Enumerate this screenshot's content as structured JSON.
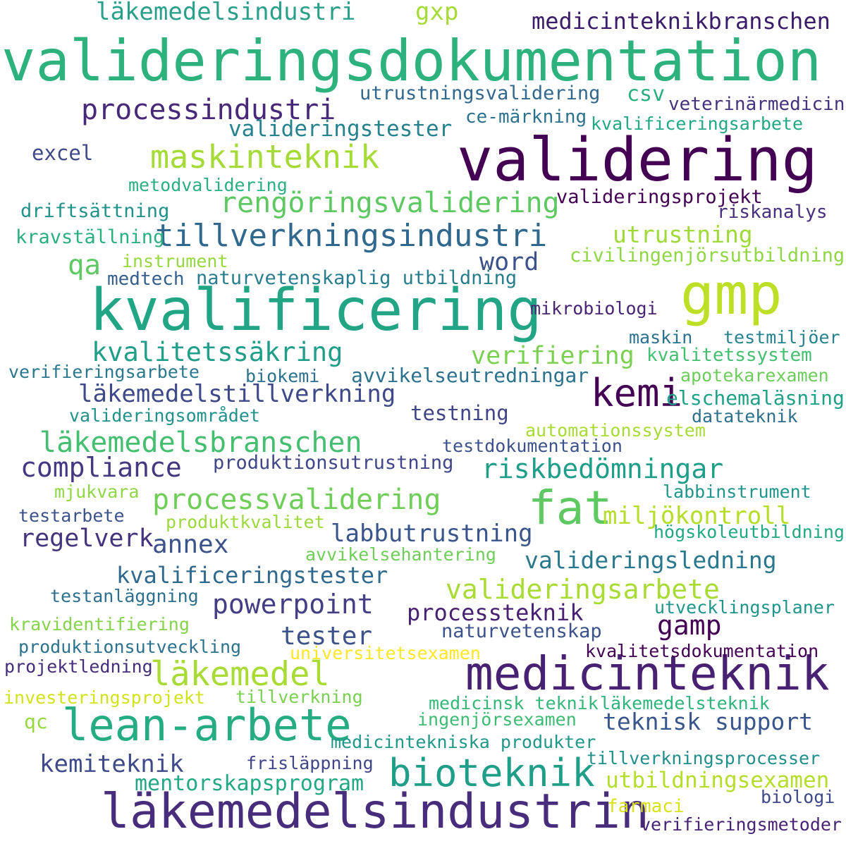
{
  "words": [
    {
      "text": "valideringsdokumentation",
      "color": "#2db27d"
    },
    {
      "text": "validering",
      "color": "#440154"
    },
    {
      "text": "kvalificering",
      "color": "#21a585"
    },
    {
      "text": "gmp",
      "color": "#bddf26"
    },
    {
      "text": "läkemedelsindustrin",
      "color": "#472d7b"
    },
    {
      "text": "medicinteknik",
      "color": "#482173"
    },
    {
      "text": "fat",
      "color": "#5ec962"
    },
    {
      "text": "lean-arbete",
      "color": "#25ac82"
    },
    {
      "text": "bioteknik",
      "color": "#1f9e89"
    },
    {
      "text": "kemi",
      "color": "#440154"
    },
    {
      "text": "maskinteknik",
      "color": "#a5db36"
    },
    {
      "text": "processindustri",
      "color": "#482878"
    },
    {
      "text": "läkemedel",
      "color": "#a8db34"
    },
    {
      "text": "läkemedelsindustri",
      "color": "#2a9f8a"
    },
    {
      "text": "gxp",
      "color": "#a5db36"
    },
    {
      "text": "medicinteknikbranschen",
      "color": "#3b1c6a"
    },
    {
      "text": "utrustningsvalidering",
      "color": "#31688e"
    },
    {
      "text": "csv",
      "color": "#2ab07f"
    },
    {
      "text": "veterinärmedicin",
      "color": "#46327e"
    },
    {
      "text": "valideringstester",
      "color": "#26828e"
    },
    {
      "text": "ce-märkning",
      "color": "#2c728e"
    },
    {
      "text": "kvalificeringsarbete",
      "color": "#22a884"
    },
    {
      "text": "excel",
      "color": "#3e4989"
    },
    {
      "text": "metodvalidering",
      "color": "#2ab07f"
    },
    {
      "text": "rengöringsvalidering",
      "color": "#5ec962"
    },
    {
      "text": "valideringsprojekt",
      "color": "#440154"
    },
    {
      "text": "driftsättning",
      "color": "#21918c"
    },
    {
      "text": "riskanalys",
      "color": "#472f7d"
    },
    {
      "text": "tillverkningsindustri",
      "color": "#31688e"
    },
    {
      "text": "utrustning",
      "color": "#a0da39"
    },
    {
      "text": "kravställning",
      "color": "#2ab07f"
    },
    {
      "text": "qa",
      "color": "#5ec962"
    },
    {
      "text": "instrument",
      "color": "#95d840"
    },
    {
      "text": "word",
      "color": "#3b528b"
    },
    {
      "text": "civilingenjörsutbildning",
      "color": "#8fd744"
    },
    {
      "text": "medtech",
      "color": "#355f8d"
    },
    {
      "text": "naturvetenskaplig utbildning",
      "color": "#287d8e"
    },
    {
      "text": "mikrobiologi",
      "color": "#482475"
    },
    {
      "text": "maskin",
      "color": "#2c728e"
    },
    {
      "text": "testmiljöer",
      "color": "#26828e"
    },
    {
      "text": "kvalitetssäkring",
      "color": "#1f9e89"
    },
    {
      "text": "verifiering",
      "color": "#7ad151"
    },
    {
      "text": "kvalitetssystem",
      "color": "#44bf70"
    },
    {
      "text": "verifieringsarbete",
      "color": "#2a788e"
    },
    {
      "text": "biokemi",
      "color": "#2c728e"
    },
    {
      "text": "avvikelseutredningar",
      "color": "#2c728e"
    },
    {
      "text": "apotekarexamen",
      "color": "#6ccd5a"
    },
    {
      "text": "läkemedelstillverkning",
      "color": "#3e4989"
    },
    {
      "text": "elschemaläsning",
      "color": "#1fa187"
    },
    {
      "text": "valideringsområdet",
      "color": "#21918c"
    },
    {
      "text": "testning",
      "color": "#414487"
    },
    {
      "text": "datateknik",
      "color": "#2d708e"
    },
    {
      "text": "automationssystem",
      "color": "#a8db34"
    },
    {
      "text": "läkemedelsbranschen",
      "color": "#44bf70"
    },
    {
      "text": "testdokumentation",
      "color": "#3b528b"
    },
    {
      "text": "compliance",
      "color": "#453781"
    },
    {
      "text": "produktionsutrustning",
      "color": "#404688"
    },
    {
      "text": "riskbedömningar",
      "color": "#1f9e89"
    },
    {
      "text": "mjukvara",
      "color": "#8fd744"
    },
    {
      "text": "labbinstrument",
      "color": "#1f958b"
    },
    {
      "text": "processvalidering",
      "color": "#6ece58"
    },
    {
      "text": "miljökontroll",
      "color": "#b5de2b"
    },
    {
      "text": "testarbete",
      "color": "#3b528b"
    },
    {
      "text": "produktkvalitet",
      "color": "#9bd93c"
    },
    {
      "text": "högskoleutbildning",
      "color": "#22a884"
    },
    {
      "text": "regelverk",
      "color": "#46337e"
    },
    {
      "text": "annex",
      "color": "#3b528b"
    },
    {
      "text": "labbutrustning",
      "color": "#39558c"
    },
    {
      "text": "avvikelsehantering",
      "color": "#6ece58"
    },
    {
      "text": "valideringsledning",
      "color": "#2a788e"
    },
    {
      "text": "kvalificeringstester",
      "color": "#30698e"
    },
    {
      "text": "valideringsarbete",
      "color": "#a8db34"
    },
    {
      "text": "testanläggning",
      "color": "#2d708e"
    },
    {
      "text": "powerpoint",
      "color": "#433e85"
    },
    {
      "text": "processteknik",
      "color": "#482173"
    },
    {
      "text": "utvecklingsplaner",
      "color": "#1f958b"
    },
    {
      "text": "kravidentifiering",
      "color": "#84d44b"
    },
    {
      "text": "gamp",
      "color": "#440154"
    },
    {
      "text": "tester",
      "color": "#3b528b"
    },
    {
      "text": "naturvetenskap",
      "color": "#3b528b"
    },
    {
      "text": "produktionsutveckling",
      "color": "#2c728e"
    },
    {
      "text": "universitetsexamen",
      "color": "#fde725"
    },
    {
      "text": "kvalitetsdokumentation",
      "color": "#440154"
    },
    {
      "text": "projektledning",
      "color": "#472d7b"
    },
    {
      "text": "investeringsprojekt",
      "color": "#d2e21b"
    },
    {
      "text": "tillverkning",
      "color": "#7ad151"
    },
    {
      "text": "medicinsk teknik",
      "color": "#35b779"
    },
    {
      "text": "läkemedelsteknik",
      "color": "#2fb47c"
    },
    {
      "text": "qc",
      "color": "#95d840"
    },
    {
      "text": "ingenjörsexamen",
      "color": "#3fbc73"
    },
    {
      "text": "teknisk support",
      "color": "#39568c"
    },
    {
      "text": "medicintekniska produkter",
      "color": "#1f978b"
    },
    {
      "text": "kemiteknik",
      "color": "#3e4a89"
    },
    {
      "text": "frisläppning",
      "color": "#404688"
    },
    {
      "text": "tillverkningsprocesser",
      "color": "#21908d"
    },
    {
      "text": "mentorskapsprogram",
      "color": "#22a884"
    },
    {
      "text": "utbildningsexamen",
      "color": "#b5de2b"
    },
    {
      "text": "farmaci",
      "color": "#d8e219"
    },
    {
      "text": "biologi",
      "color": "#3e4989"
    },
    {
      "text": "verifieringsmetoder",
      "color": "#482475"
    }
  ]
}
